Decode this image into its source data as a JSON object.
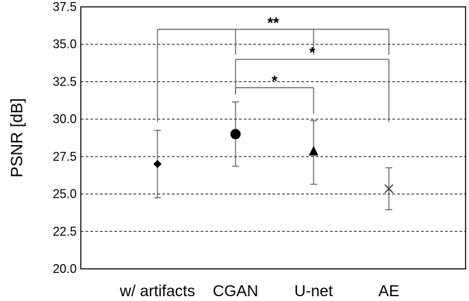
{
  "chart_data": {
    "type": "scatter",
    "title": "",
    "xlabel": "",
    "ylabel": "PSNR [dB]",
    "ylim": [
      20.0,
      37.5
    ],
    "yticks": [
      "20.0",
      "22.5",
      "25.0",
      "27.5",
      "30.0",
      "32.5",
      "35.0",
      "37.5"
    ],
    "grid": "horizontal dashed",
    "categories": [
      "w/ artifacts",
      "CGAN",
      "U-net",
      "AE"
    ],
    "points": [
      {
        "category": "w/ artifacts",
        "mean": 27.0,
        "err_low": 24.75,
        "err_high": 29.25,
        "marker": "diamond"
      },
      {
        "category": "CGAN",
        "mean": 29.0,
        "err_low": 26.85,
        "err_high": 31.15,
        "marker": "circle"
      },
      {
        "category": "U-net",
        "mean": 27.8,
        "err_low": 25.65,
        "err_high": 29.9,
        "marker": "triangle"
      },
      {
        "category": "AE",
        "mean": 25.35,
        "err_low": 23.95,
        "err_high": 26.75,
        "marker": "cross"
      }
    ],
    "brackets": [
      {
        "label": "**",
        "bar_y": 36.0,
        "span": [
          "w/ artifacts",
          "AE"
        ],
        "drops": [
          {
            "category": "w/ artifacts",
            "end_y": 29.8
          },
          {
            "category": "CGAN",
            "end_y": 34.3
          },
          {
            "category": "U-net",
            "end_y": 34.3
          },
          {
            "category": "AE",
            "end_y": 34.3
          }
        ]
      },
      {
        "label": "*",
        "bar_y": 34.0,
        "span": [
          "CGAN",
          "AE"
        ],
        "drops": [
          {
            "category": "CGAN",
            "end_y": 31.65
          },
          {
            "category": "AE",
            "end_y": 29.8
          }
        ]
      },
      {
        "label": "*",
        "bar_y": 32.1,
        "span": [
          "CGAN",
          "U-net"
        ],
        "drops": [
          {
            "category": "CGAN",
            "end_y": 31.65
          },
          {
            "category": "U-net",
            "end_y": 30.35
          }
        ]
      }
    ],
    "colors": {
      "marker": "#000000",
      "errorbar": "#595959",
      "bracket": "#595959",
      "grid": "#000000",
      "frame": "#000000"
    }
  }
}
